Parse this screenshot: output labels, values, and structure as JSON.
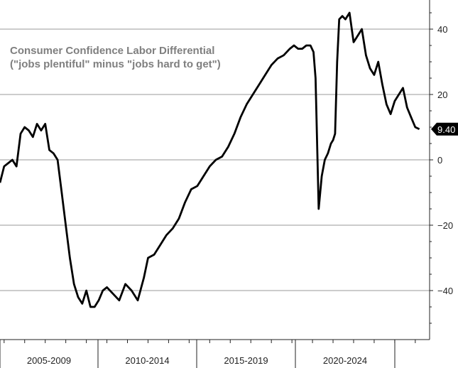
{
  "chart_data": {
    "type": "line",
    "title": "Consumer Confidence Labor Differential",
    "subtitle": "(\"jobs plentiful\" minus \"jobs hard to get\")",
    "xlabel": "",
    "ylabel": "",
    "x_tick_labels": [
      "2005-2009",
      "2010-2014",
      "2015-2019",
      "2020-2024"
    ],
    "y_ticks": [
      40,
      20,
      0,
      -20,
      -40
    ],
    "y_tick_labels": [
      "40",
      "20",
      "0",
      "−20",
      "−40"
    ],
    "ylim": [
      -50,
      50
    ],
    "xlim": [
      2004.8,
      2025.8
    ],
    "grid": true,
    "last_value_label": "9.40",
    "line_color": "#000000",
    "series": [
      {
        "name": "",
        "x": [
          2004.8,
          2005.0,
          2005.2,
          2005.4,
          2005.6,
          2005.8,
          2006.0,
          2006.2,
          2006.4,
          2006.6,
          2006.8,
          2007.0,
          2007.2,
          2007.4,
          2007.6,
          2007.8,
          2008.0,
          2008.2,
          2008.4,
          2008.6,
          2008.8,
          2009.0,
          2009.2,
          2009.4,
          2009.6,
          2009.8,
          2010.0,
          2010.3,
          2010.6,
          2010.9,
          2011.2,
          2011.5,
          2011.8,
          2012.0,
          2012.3,
          2012.6,
          2012.9,
          2013.2,
          2013.5,
          2013.8,
          2014.1,
          2014.4,
          2014.7,
          2015.0,
          2015.3,
          2015.6,
          2015.9,
          2016.2,
          2016.5,
          2016.8,
          2017.1,
          2017.4,
          2017.7,
          2018.0,
          2018.3,
          2018.6,
          2018.9,
          2019.1,
          2019.3,
          2019.5,
          2019.7,
          2019.9,
          2020.05,
          2020.15,
          2020.3,
          2020.45,
          2020.6,
          2020.75,
          2020.9,
          2021.0,
          2021.1,
          2021.2,
          2021.3,
          2021.45,
          2021.6,
          2021.8,
          2022.0,
          2022.2,
          2022.4,
          2022.6,
          2022.8,
          2023.0,
          2023.2,
          2023.4,
          2023.6,
          2023.8,
          2024.0,
          2024.2,
          2024.4,
          2024.6,
          2024.8,
          2025.0,
          2025.2
        ],
        "values": [
          -7,
          -2,
          -1,
          0,
          -2,
          8,
          10,
          9,
          7,
          11,
          9,
          11,
          3,
          2,
          0,
          -10,
          -20,
          -30,
          -38,
          -42,
          -44,
          -40,
          -45,
          -45,
          -43,
          -40,
          -39,
          -41,
          -43,
          -38,
          -40,
          -43,
          -36,
          -30,
          -29,
          -26,
          -23,
          -21,
          -18,
          -13,
          -9,
          -8,
          -5,
          -2,
          0,
          1,
          4,
          8,
          13,
          17,
          20,
          23,
          26,
          29,
          31,
          32,
          34,
          35,
          34,
          34,
          35,
          35,
          33,
          25,
          -15,
          -5,
          0,
          2,
          5,
          6,
          8,
          30,
          43,
          44,
          43,
          45,
          36,
          38,
          40,
          32,
          28,
          26,
          30,
          23,
          17,
          14,
          18,
          20,
          22,
          16,
          13,
          10,
          9.4
        ]
      }
    ]
  }
}
